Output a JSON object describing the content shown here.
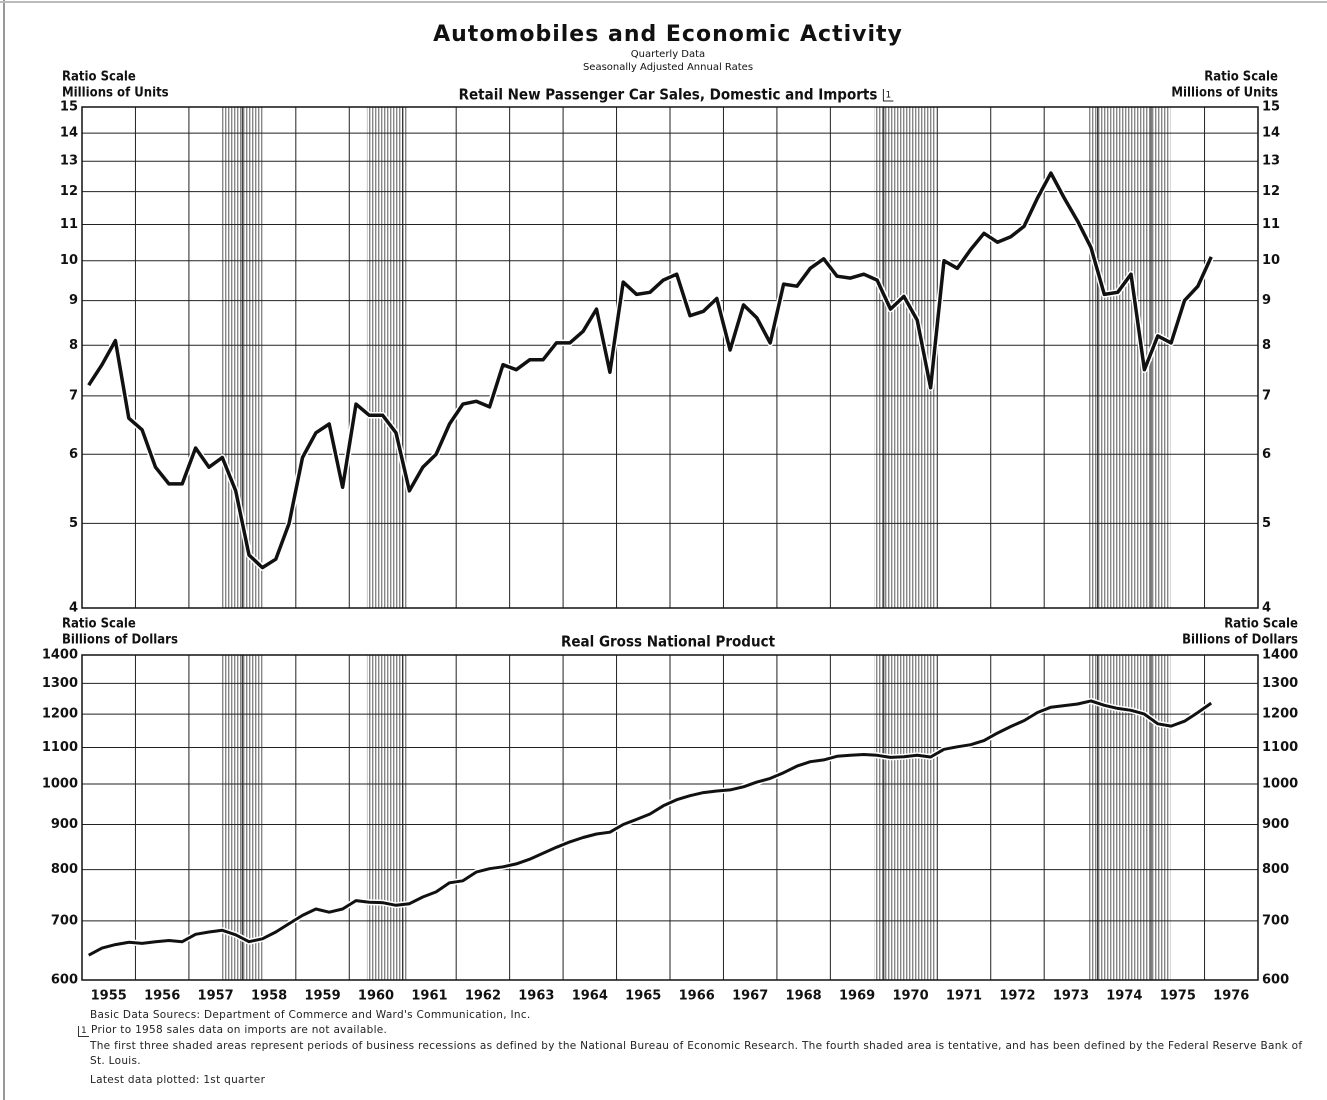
{
  "title": "Automobiles and Economic Activity",
  "subtitle": [
    "Quarterly Data",
    "Seasonally Adjusted Annual Rates"
  ],
  "chart_data": [
    {
      "type": "line",
      "title": "Retail New Passenger Car Sales, Domestic and Imports",
      "footnote_marker": "1",
      "y_axis_label": [
        "Ratio Scale",
        "Millions of Units"
      ],
      "log_scale": true,
      "grid": true,
      "color": "#111111",
      "xlim": [
        1955,
        1977
      ],
      "xticks": [
        1955,
        1956,
        1957,
        1958,
        1959,
        1960,
        1961,
        1962,
        1963,
        1964,
        1965,
        1966,
        1967,
        1968,
        1969,
        1970,
        1971,
        1972,
        1973,
        1974,
        1975,
        1976
      ],
      "ylim": [
        4,
        15
      ],
      "yticks": [
        4,
        5,
        6,
        7,
        8,
        9,
        10,
        11,
        12,
        13,
        14,
        15
      ],
      "shaded_periods": [
        [
          1957.6,
          1958.4
        ],
        [
          1960.33,
          1961.08
        ],
        [
          1969.82,
          1970.96
        ],
        [
          1973.82,
          1975.36
        ]
      ],
      "x": [
        1955.125,
        1955.375,
        1955.625,
        1955.875,
        1956.125,
        1956.375,
        1956.625,
        1956.875,
        1957.125,
        1957.375,
        1957.625,
        1957.875,
        1958.125,
        1958.375,
        1958.625,
        1958.875,
        1959.125,
        1959.375,
        1959.625,
        1959.875,
        1960.125,
        1960.375,
        1960.625,
        1960.875,
        1961.125,
        1961.375,
        1961.625,
        1961.875,
        1962.125,
        1962.375,
        1962.625,
        1962.875,
        1963.125,
        1963.375,
        1963.625,
        1963.875,
        1964.125,
        1964.375,
        1964.625,
        1964.875,
        1965.125,
        1965.375,
        1965.625,
        1965.875,
        1966.125,
        1966.375,
        1966.625,
        1966.875,
        1967.125,
        1967.375,
        1967.625,
        1967.875,
        1968.125,
        1968.375,
        1968.625,
        1968.875,
        1969.125,
        1969.375,
        1969.625,
        1969.875,
        1970.125,
        1970.375,
        1970.625,
        1970.875,
        1971.125,
        1971.375,
        1971.625,
        1971.875,
        1972.125,
        1972.375,
        1972.625,
        1972.875,
        1973.125,
        1973.375,
        1973.625,
        1973.875,
        1974.125,
        1974.375,
        1974.625,
        1974.875,
        1975.125,
        1975.375,
        1975.625,
        1975.875,
        1976.125
      ],
      "values": [
        7.2,
        7.6,
        8.1,
        6.6,
        6.4,
        5.8,
        5.55,
        5.55,
        6.1,
        5.8,
        5.95,
        5.45,
        4.6,
        4.45,
        4.55,
        5.0,
        5.95,
        6.35,
        6.5,
        5.5,
        6.85,
        6.65,
        6.65,
        6.35,
        5.45,
        5.8,
        6.0,
        6.5,
        6.85,
        6.9,
        6.8,
        7.6,
        7.5,
        7.7,
        7.7,
        8.05,
        8.05,
        8.3,
        8.8,
        7.45,
        9.45,
        9.15,
        9.2,
        9.5,
        9.65,
        8.65,
        8.75,
        9.05,
        7.9,
        8.9,
        8.6,
        8.05,
        9.4,
        9.35,
        9.8,
        10.05,
        9.6,
        9.55,
        9.65,
        9.5,
        8.8,
        9.1,
        8.55,
        7.15,
        10.0,
        9.8,
        10.3,
        10.75,
        10.5,
        10.65,
        10.95,
        11.8,
        12.6,
        11.8,
        11.1,
        10.35,
        9.15,
        9.2,
        9.65,
        7.5,
        8.2,
        8.05,
        9.0,
        9.35,
        10.1
      ]
    },
    {
      "type": "line",
      "title": "Real Gross National Product",
      "y_axis_label": [
        "Ratio Scale",
        "Billions of Dollars"
      ],
      "log_scale": true,
      "grid": true,
      "color": "#111111",
      "xlim": [
        1955,
        1977
      ],
      "xticks": [
        1955,
        1956,
        1957,
        1958,
        1959,
        1960,
        1961,
        1962,
        1963,
        1964,
        1965,
        1966,
        1967,
        1968,
        1969,
        1970,
        1971,
        1972,
        1973,
        1974,
        1975,
        1976
      ],
      "ylim": [
        600,
        1400
      ],
      "yticks": [
        600,
        700,
        800,
        900,
        1000,
        1100,
        1200,
        1300,
        1400
      ],
      "shaded_periods": [
        [
          1957.6,
          1958.4
        ],
        [
          1960.33,
          1961.08
        ],
        [
          1969.82,
          1970.96
        ],
        [
          1973.82,
          1975.36
        ]
      ],
      "x": [
        1955.125,
        1955.375,
        1955.625,
        1955.875,
        1956.125,
        1956.375,
        1956.625,
        1956.875,
        1957.125,
        1957.375,
        1957.625,
        1957.875,
        1958.125,
        1958.375,
        1958.625,
        1958.875,
        1959.125,
        1959.375,
        1959.625,
        1959.875,
        1960.125,
        1960.375,
        1960.625,
        1960.875,
        1961.125,
        1961.375,
        1961.625,
        1961.875,
        1962.125,
        1962.375,
        1962.625,
        1962.875,
        1963.125,
        1963.375,
        1963.625,
        1963.875,
        1964.125,
        1964.375,
        1964.625,
        1964.875,
        1965.125,
        1965.375,
        1965.625,
        1965.875,
        1966.125,
        1966.375,
        1966.625,
        1966.875,
        1967.125,
        1967.375,
        1967.625,
        1967.875,
        1968.125,
        1968.375,
        1968.625,
        1968.875,
        1969.125,
        1969.375,
        1969.625,
        1969.875,
        1970.125,
        1970.375,
        1970.625,
        1970.875,
        1971.125,
        1971.375,
        1971.625,
        1971.875,
        1972.125,
        1972.375,
        1972.625,
        1972.875,
        1973.125,
        1973.375,
        1973.625,
        1973.875,
        1974.125,
        1974.375,
        1974.625,
        1974.875,
        1975.125,
        1975.375,
        1975.625,
        1975.875,
        1976.125
      ],
      "values": [
        640,
        652,
        658,
        662,
        660,
        663,
        665,
        663,
        676,
        680,
        683,
        675,
        663,
        668,
        680,
        695,
        710,
        722,
        716,
        722,
        738,
        735,
        734,
        729,
        732,
        745,
        755,
        773,
        777,
        795,
        802,
        806,
        812,
        822,
        835,
        848,
        860,
        870,
        878,
        882,
        900,
        912,
        925,
        945,
        960,
        970,
        978,
        982,
        985,
        993,
        1005,
        1015,
        1030,
        1048,
        1060,
        1065,
        1075,
        1078,
        1080,
        1078,
        1072,
        1074,
        1078,
        1073,
        1095,
        1102,
        1108,
        1120,
        1142,
        1162,
        1180,
        1205,
        1222,
        1227,
        1232,
        1242,
        1228,
        1218,
        1212,
        1200,
        1170,
        1163,
        1178,
        1205,
        1235
      ]
    }
  ],
  "notes": {
    "sources": "Basic Data Sourecs: Department of Commerce and Ward's Communication, Inc.",
    "imports": "Prior to 1958 sales data on imports are not available.",
    "shading": "The first three shaded areas represent periods of business recessions as defined by the National Bureau of Economic Research. The fourth shaded area is tentative, and has been defined by the Federal Reserve Bank of St. Louis.",
    "latest": "Latest data plotted: 1st quarter"
  }
}
